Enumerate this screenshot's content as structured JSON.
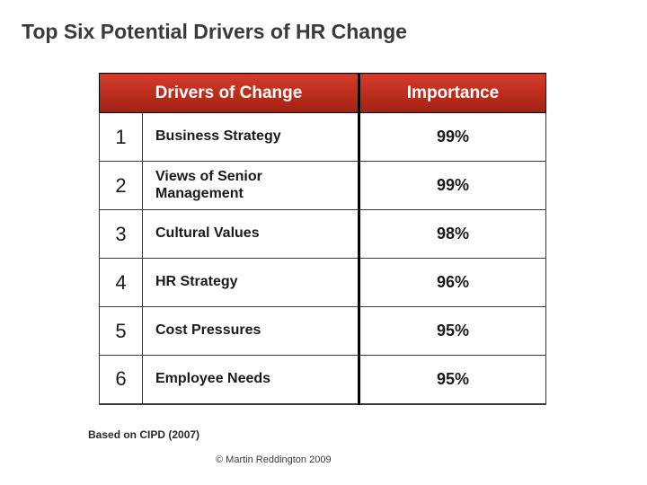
{
  "slide": {
    "title": "Top Six Potential Drivers of HR Change",
    "source_note": "Based on CIPD (2007)",
    "copyright": "© Martin Reddington 2009"
  },
  "table": {
    "type": "table",
    "header": {
      "drivers_label": "Drivers of Change",
      "importance_label": "Importance",
      "bg_gradient_top": "#d43c2a",
      "bg_gradient_bottom": "#a02116",
      "text_color": "#ffffff",
      "fontsize": 19
    },
    "columns": {
      "num_width": 48,
      "driver_width": 242,
      "importance_width": 208,
      "divider_width": 3,
      "divider_color": "#000000"
    },
    "row_bg": "#ffffff",
    "border_color": "#3a3a3a",
    "num_fontsize": 22,
    "driver_fontsize": 16,
    "pct_fontsize": 18,
    "text_color": "#1a1a1a",
    "rows": [
      {
        "num": "1",
        "driver": "Business Strategy",
        "importance": "99%"
      },
      {
        "num": "2",
        "driver": "Views of Senior Management",
        "importance": "99%"
      },
      {
        "num": "3",
        "driver": "Cultural Values",
        "importance": "98%"
      },
      {
        "num": "4",
        "driver": "HR Strategy",
        "importance": "96%"
      },
      {
        "num": "5",
        "driver": "Cost Pressures",
        "importance": "95%"
      },
      {
        "num": "6",
        "driver": "Employee Needs",
        "importance": "95%"
      }
    ]
  }
}
